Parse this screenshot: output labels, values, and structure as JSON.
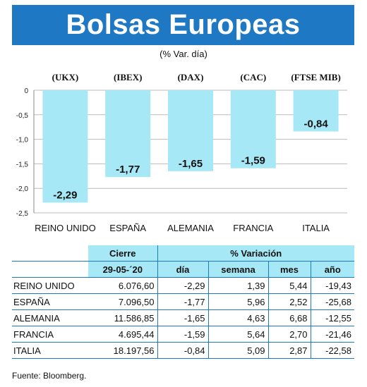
{
  "title": "Bolsas Europeas",
  "subtitle": "(% Var. día)",
  "chart_data": {
    "type": "bar",
    "indices": [
      "(UKX)",
      "(IBEX)",
      "(DAX)",
      "(CAC)",
      "(FTSE MIB)"
    ],
    "categories": [
      "REINO UNIDO",
      "ESPAÑA",
      "ALEMANIA",
      "FRANCIA",
      "ITALIA"
    ],
    "values": [
      -2.29,
      -1.77,
      -1.65,
      -1.59,
      -0.84
    ],
    "value_labels": [
      "-2,29",
      "-1,77",
      "-1,65",
      "-1,59",
      "-0,84"
    ],
    "yticks": [
      "0",
      "-0,5",
      "-1,0",
      "-1,5",
      "-2,0",
      "-2,5"
    ],
    "ylim": [
      -2.5,
      0
    ],
    "grid": true,
    "bar_color": "#a6e8f6",
    "grid_color": "#bbbbbb"
  },
  "table": {
    "group_headers": [
      "Cierre",
      "% Variación"
    ],
    "col_headers": [
      "29-05-´20",
      "día",
      "semana",
      "mes",
      "año"
    ],
    "rows": [
      {
        "name": "REINO UNIDO",
        "cierre": "6.076,60",
        "dia": "-2,29",
        "semana": "1,39",
        "mes": "5,44",
        "anio": "-19,43"
      },
      {
        "name": "ESPAÑA",
        "cierre": "7.096,50",
        "dia": "-1,77",
        "semana": "5,96",
        "mes": "2,52",
        "anio": "-25,68"
      },
      {
        "name": "ALEMANIA",
        "cierre": "11.586,85",
        "dia": "-1,65",
        "semana": "4,63",
        "mes": "6,68",
        "anio": "-12,55"
      },
      {
        "name": "FRANCIA",
        "cierre": "4.695,44",
        "dia": "-1,59",
        "semana": "5,64",
        "mes": "2,70",
        "anio": "-21,46"
      },
      {
        "name": "ITALIA",
        "cierre": "18.197,56",
        "dia": "-0,84",
        "semana": "5,09",
        "mes": "2,87",
        "anio": "-22,58"
      }
    ]
  },
  "source": "Fuente: Bloomberg.",
  "colors": {
    "banner": "#1e78c4",
    "header_fill": "#a6e8f6",
    "rule": "#1e78c4"
  }
}
